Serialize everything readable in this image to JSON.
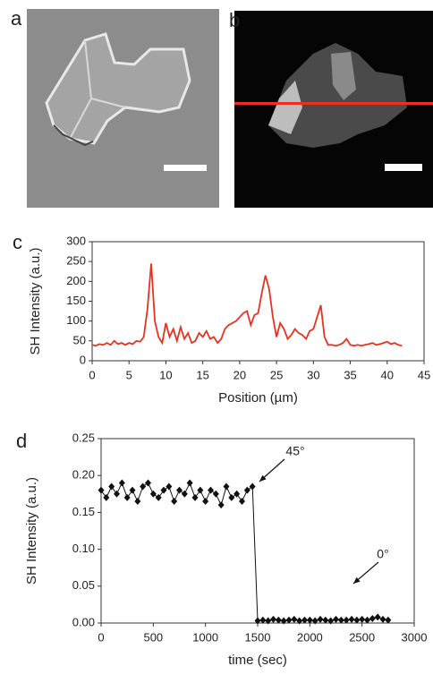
{
  "panel_labels": [
    "a",
    "b",
    "c",
    "d"
  ],
  "chart_data": [
    {
      "type": "line",
      "xlabel": "Position (µm)",
      "ylabel": "SH Intensity (a.u.)",
      "xlim": [
        0,
        45
      ],
      "xticks": [
        0,
        5,
        10,
        15,
        20,
        25,
        30,
        35,
        40,
        45
      ],
      "ylim": [
        0,
        300
      ],
      "yticks": [
        0,
        50,
        100,
        150,
        200,
        250,
        300
      ],
      "x": [
        0,
        0.5,
        1,
        1.5,
        2,
        2.5,
        3,
        3.5,
        4,
        4.5,
        5,
        5.5,
        6,
        6.5,
        7,
        7.5,
        8,
        8.5,
        9,
        9.5,
        10,
        10.5,
        11,
        11.5,
        12,
        12.5,
        13,
        13.5,
        14,
        14.5,
        15,
        15.5,
        16,
        16.5,
        17,
        17.5,
        18,
        18.5,
        19,
        19.5,
        20,
        20.5,
        21,
        21.5,
        22,
        22.5,
        23,
        23.5,
        24,
        24.5,
        25,
        25.5,
        26,
        26.5,
        27,
        27.5,
        28,
        28.5,
        29,
        29.5,
        30,
        30.5,
        31,
        31.5,
        32,
        32.5,
        33,
        33.5,
        34,
        34.5,
        35,
        35.5,
        36,
        36.5,
        37,
        37.5,
        38,
        38.5,
        39,
        39.5,
        40,
        40.5,
        41,
        41.5,
        42
      ],
      "series": [
        {
          "color": "#e8321e",
          "values": [
            40,
            38,
            42,
            40,
            45,
            40,
            50,
            42,
            45,
            40,
            45,
            42,
            50,
            48,
            60,
            130,
            245,
            100,
            60,
            45,
            95,
            60,
            80,
            50,
            85,
            55,
            70,
            45,
            50,
            70,
            60,
            75,
            55,
            60,
            45,
            55,
            80,
            90,
            95,
            100,
            110,
            120,
            125,
            90,
            115,
            120,
            170,
            215,
            180,
            110,
            60,
            95,
            80,
            55,
            65,
            80,
            70,
            65,
            55,
            75,
            80,
            110,
            140,
            60,
            40,
            40,
            38,
            40,
            45,
            55,
            40,
            38,
            40,
            38,
            40,
            42,
            45,
            40,
            42,
            45,
            48,
            42,
            45,
            40,
            38
          ]
        }
      ]
    },
    {
      "type": "scatter",
      "xlabel": "time (sec)",
      "ylabel": "SH Intensity (a.u.)",
      "xlim": [
        0,
        3000
      ],
      "xticks": [
        0,
        500,
        1000,
        1500,
        2000,
        2500,
        3000
      ],
      "ylim": [
        0,
        0.25
      ],
      "yticks": [
        {
          "value": 0,
          "label": "0.00"
        },
        {
          "value": 0.05,
          "label": "0.05"
        },
        {
          "value": 0.1,
          "label": "0.10"
        },
        {
          "value": 0.15,
          "label": "0.15"
        },
        {
          "value": 0.2,
          "label": "0.20"
        },
        {
          "value": 0.25,
          "label": "0.25"
        }
      ],
      "annotations": [
        "45°",
        "0°"
      ],
      "x": [
        0,
        50,
        100,
        150,
        200,
        250,
        300,
        350,
        400,
        450,
        500,
        550,
        600,
        650,
        700,
        750,
        800,
        850,
        900,
        950,
        1000,
        1050,
        1100,
        1150,
        1200,
        1250,
        1300,
        1350,
        1400,
        1450,
        1500,
        1550,
        1600,
        1650,
        1700,
        1750,
        1800,
        1850,
        1900,
        1950,
        2000,
        2050,
        2100,
        2150,
        2200,
        2250,
        2300,
        2350,
        2400,
        2450,
        2500,
        2550,
        2600,
        2650,
        2700,
        2750
      ],
      "series": [
        {
          "color": "#111111",
          "values": [
            0.18,
            0.17,
            0.185,
            0.175,
            0.19,
            0.17,
            0.18,
            0.165,
            0.185,
            0.19,
            0.175,
            0.17,
            0.18,
            0.185,
            0.165,
            0.18,
            0.175,
            0.19,
            0.17,
            0.18,
            0.165,
            0.18,
            0.175,
            0.16,
            0.185,
            0.17,
            0.175,
            0.165,
            0.18,
            0.185,
            0.003,
            0.004,
            0.003,
            0.005,
            0.004,
            0.003,
            0.004,
            0.005,
            0.003,
            0.004,
            0.004,
            0.003,
            0.005,
            0.004,
            0.003,
            0.005,
            0.004,
            0.004,
            0.005,
            0.004,
            0.005,
            0.004,
            0.006,
            0.008,
            0.005,
            0.004
          ]
        }
      ]
    }
  ]
}
